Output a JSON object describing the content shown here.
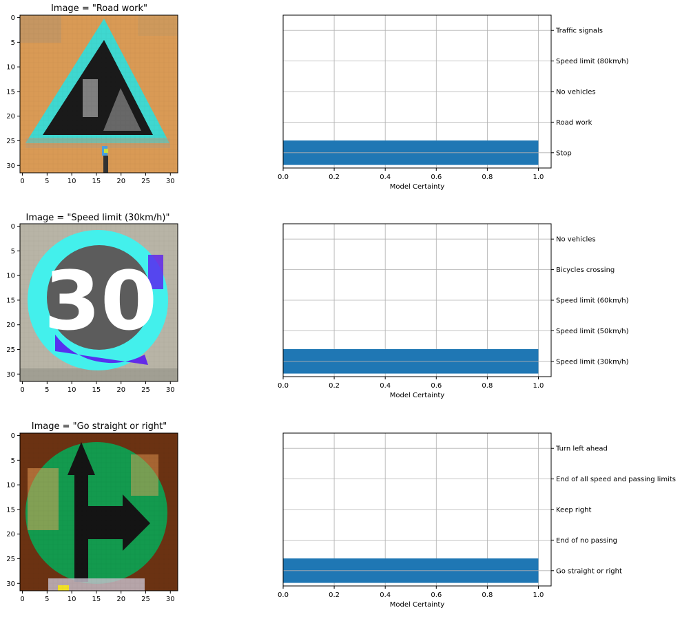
{
  "chart_data": [
    {
      "type": "bar",
      "orientation": "horizontal",
      "image_title": "Image = \"Road work\"",
      "image_axis_ticks": [
        "0",
        "5",
        "10",
        "15",
        "20",
        "25",
        "30"
      ],
      "categories": [
        "Stop",
        "Road work",
        "No vehicles",
        "Speed limit (80km/h)",
        "Traffic signals"
      ],
      "values": [
        1.0,
        0.0,
        0.0,
        0.0,
        0.0
      ],
      "xlabel": "Model Certainty",
      "xlim": [
        0,
        1.05
      ],
      "xticks": [
        "0.0",
        "0.2",
        "0.4",
        "0.6",
        "0.8",
        "1.0"
      ],
      "grid": true,
      "bar_color": "#1f77b4"
    },
    {
      "type": "bar",
      "orientation": "horizontal",
      "image_title": "Image = \"Speed limit (30km/h)\"",
      "image_axis_ticks": [
        "0",
        "5",
        "10",
        "15",
        "20",
        "25",
        "30"
      ],
      "categories": [
        "Speed limit (30km/h)",
        "Speed limit (50km/h)",
        "Speed limit (60km/h)",
        "Bicycles crossing",
        "No vehicles"
      ],
      "values": [
        1.0,
        0.0,
        0.0,
        0.0,
        0.0
      ],
      "xlabel": "Model Certainty",
      "xlim": [
        0,
        1.05
      ],
      "xticks": [
        "0.0",
        "0.2",
        "0.4",
        "0.6",
        "0.8",
        "1.0"
      ],
      "grid": true,
      "bar_color": "#1f77b4"
    },
    {
      "type": "bar",
      "orientation": "horizontal",
      "image_title": "Image = \"Go straight or right\"",
      "image_axis_ticks": [
        "0",
        "5",
        "10",
        "15",
        "20",
        "25",
        "30"
      ],
      "categories": [
        "Go straight or right",
        "End of no passing",
        "Keep right",
        "End of all speed and passing limits",
        "Turn left ahead"
      ],
      "values": [
        1.0,
        0.0,
        0.0,
        0.0,
        0.0
      ],
      "xlabel": "Model Certainty",
      "xlim": [
        0,
        1.05
      ],
      "xticks": [
        "0.0",
        "0.2",
        "0.4",
        "0.6",
        "0.8",
        "1.0"
      ],
      "grid": true,
      "bar_color": "#1f77b4"
    }
  ]
}
